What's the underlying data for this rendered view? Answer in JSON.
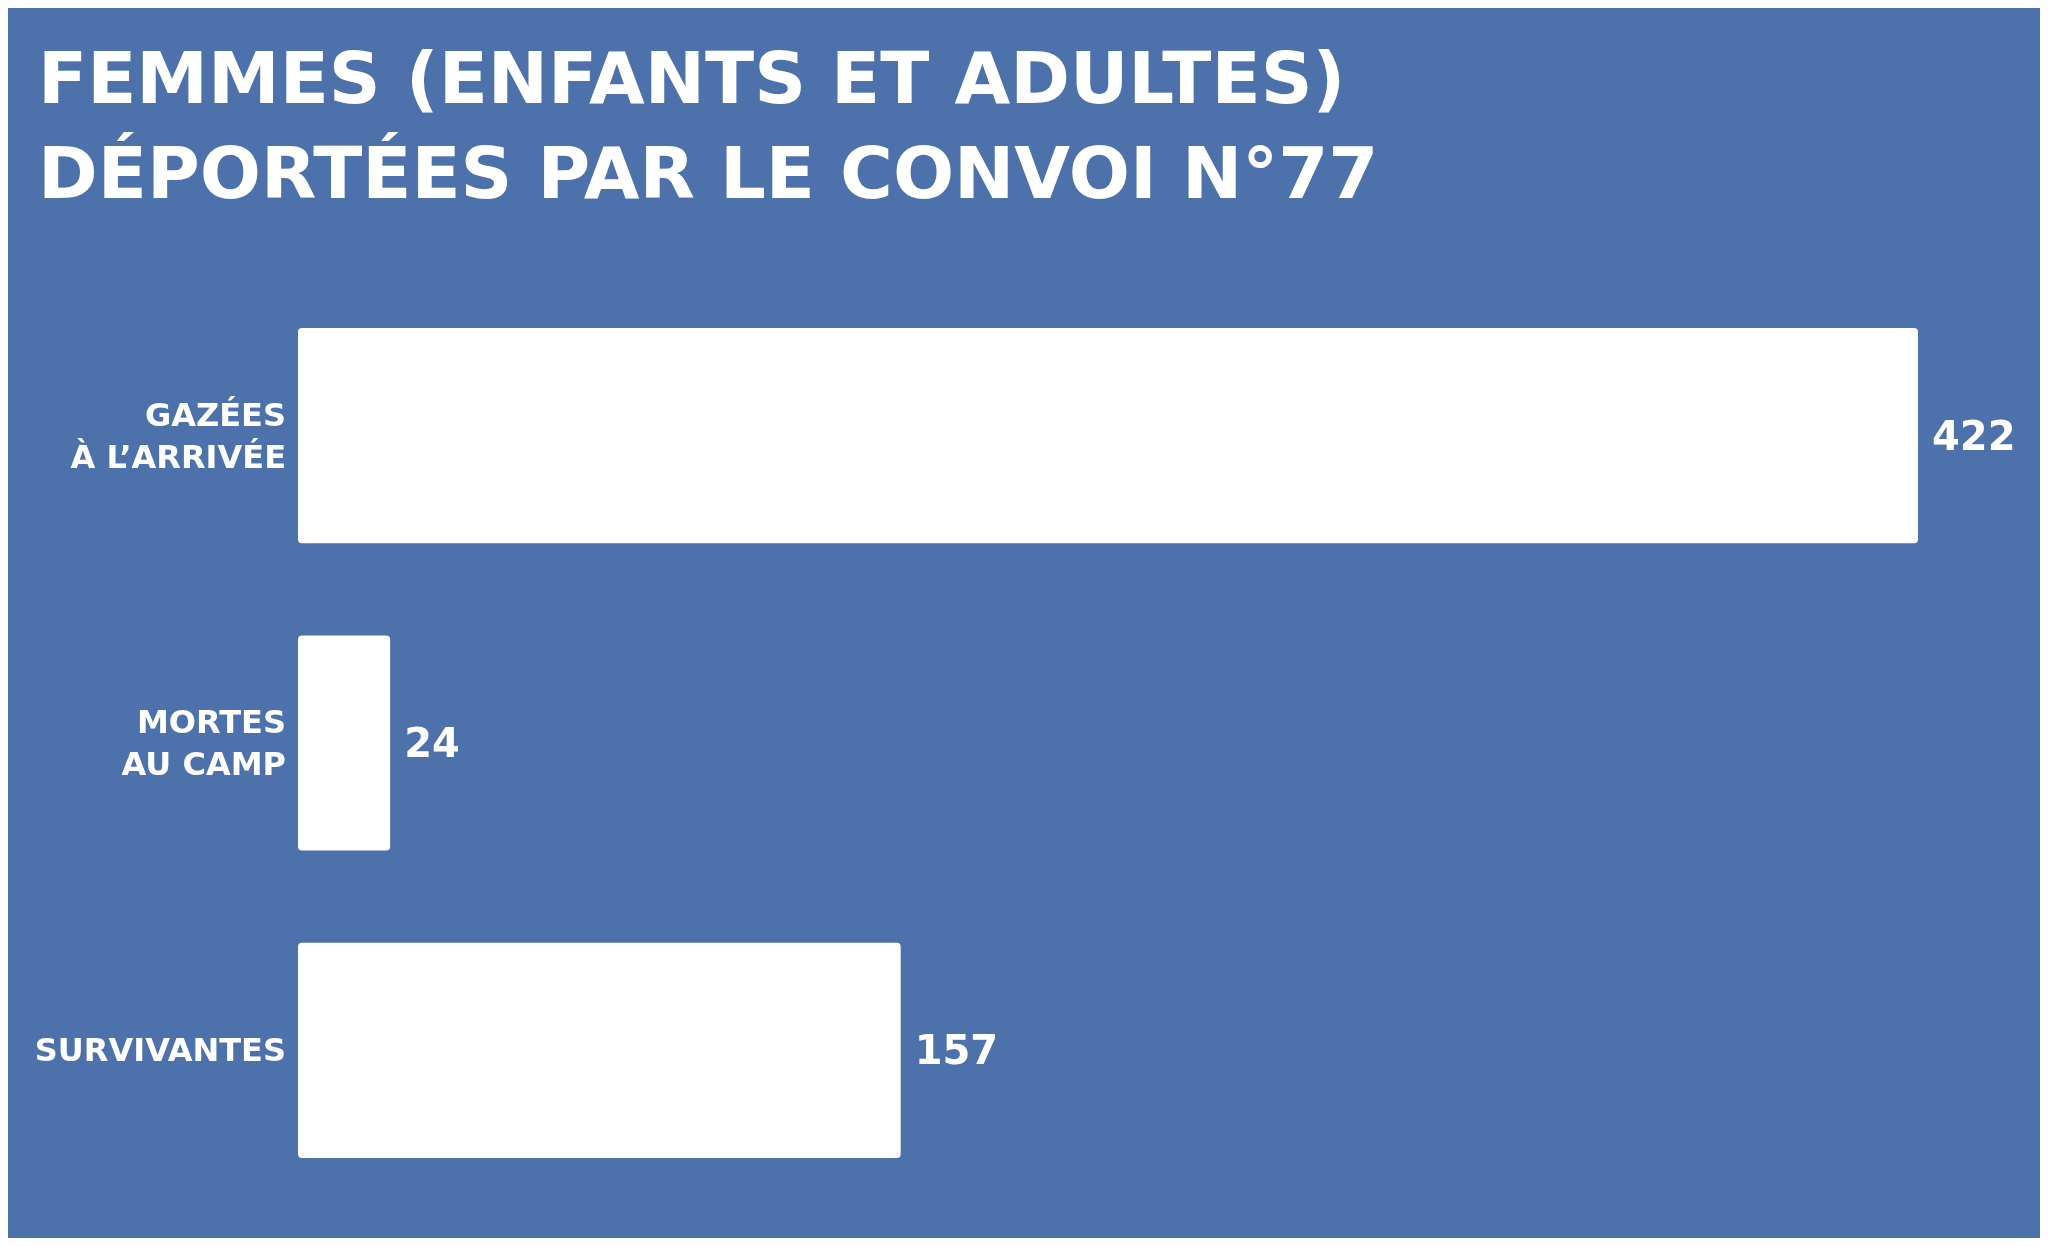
{
  "chart_data": {
    "type": "bar",
    "orientation": "horizontal",
    "title": "FEMMES (ENFANTS ET ADULTES)\nDÉPORTÉES PAR LE CONVOI N°77",
    "categories": [
      "GAZÉES\nÀ L’ARRIVÉE",
      "MORTES\nAU CAMP",
      "SURVIVANTES"
    ],
    "values": [
      422,
      24,
      157
    ],
    "color": "#ffffff",
    "data_labels": true
  }
}
